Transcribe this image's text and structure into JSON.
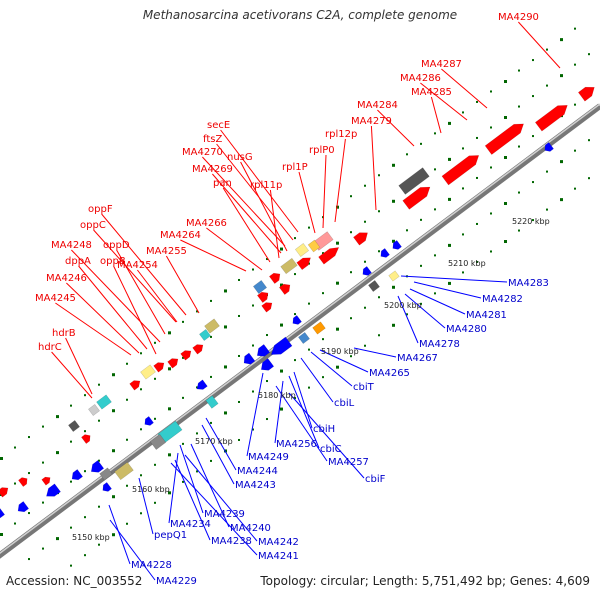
{
  "title": "Methanosarcina acetivorans C2A, complete genome",
  "footer": {
    "accession": "Accession: NC_003552",
    "summary": "Topology: circular; Length: 5,751,492 bp; Genes: 4,609"
  },
  "colors": {
    "forward": "#ff0000",
    "reverse": "#0000ff",
    "backbone": "#999999",
    "tick_dots": "#006600"
  },
  "ticks": [
    "5150 kbp",
    "5160 kbp",
    "5170 kbp",
    "5180 kbp",
    "5190 kbp",
    "5200 kbp",
    "5210 kbp",
    "5220 kbp"
  ],
  "forward_labels": [
    "MA4290",
    "MA4287",
    "MA4286",
    "MA4285",
    "MA4284",
    "MA4279",
    "rpl12p",
    "rplP0",
    "rpl1P",
    "secE",
    "ftsZ",
    "MA4270",
    "nusG",
    "MA4269",
    "rpl11p",
    "pan",
    "MA4266",
    "MA4264",
    "MA4255",
    "oppF",
    "oppC",
    "oppD",
    "MA4248",
    "dppA",
    "oppB",
    "MA4254",
    "MA4246",
    "MA4245",
    "hdrB",
    "hdrC"
  ],
  "reverse_labels": [
    "MA4283",
    "MA4282",
    "MA4281",
    "MA4280",
    "MA4278",
    "MA4267",
    "MA4265",
    "cbiT",
    "cbiL",
    "cbiH",
    "cbiC",
    "MA4256",
    "MA4257",
    "cbiF",
    "MA4249",
    "MA4244",
    "MA4243",
    "MA4239",
    "MA4240",
    "MA4234",
    "MA4238",
    "MA4242",
    "MA4241",
    "pepQ1",
    "MA4228",
    "MA4229"
  ]
}
